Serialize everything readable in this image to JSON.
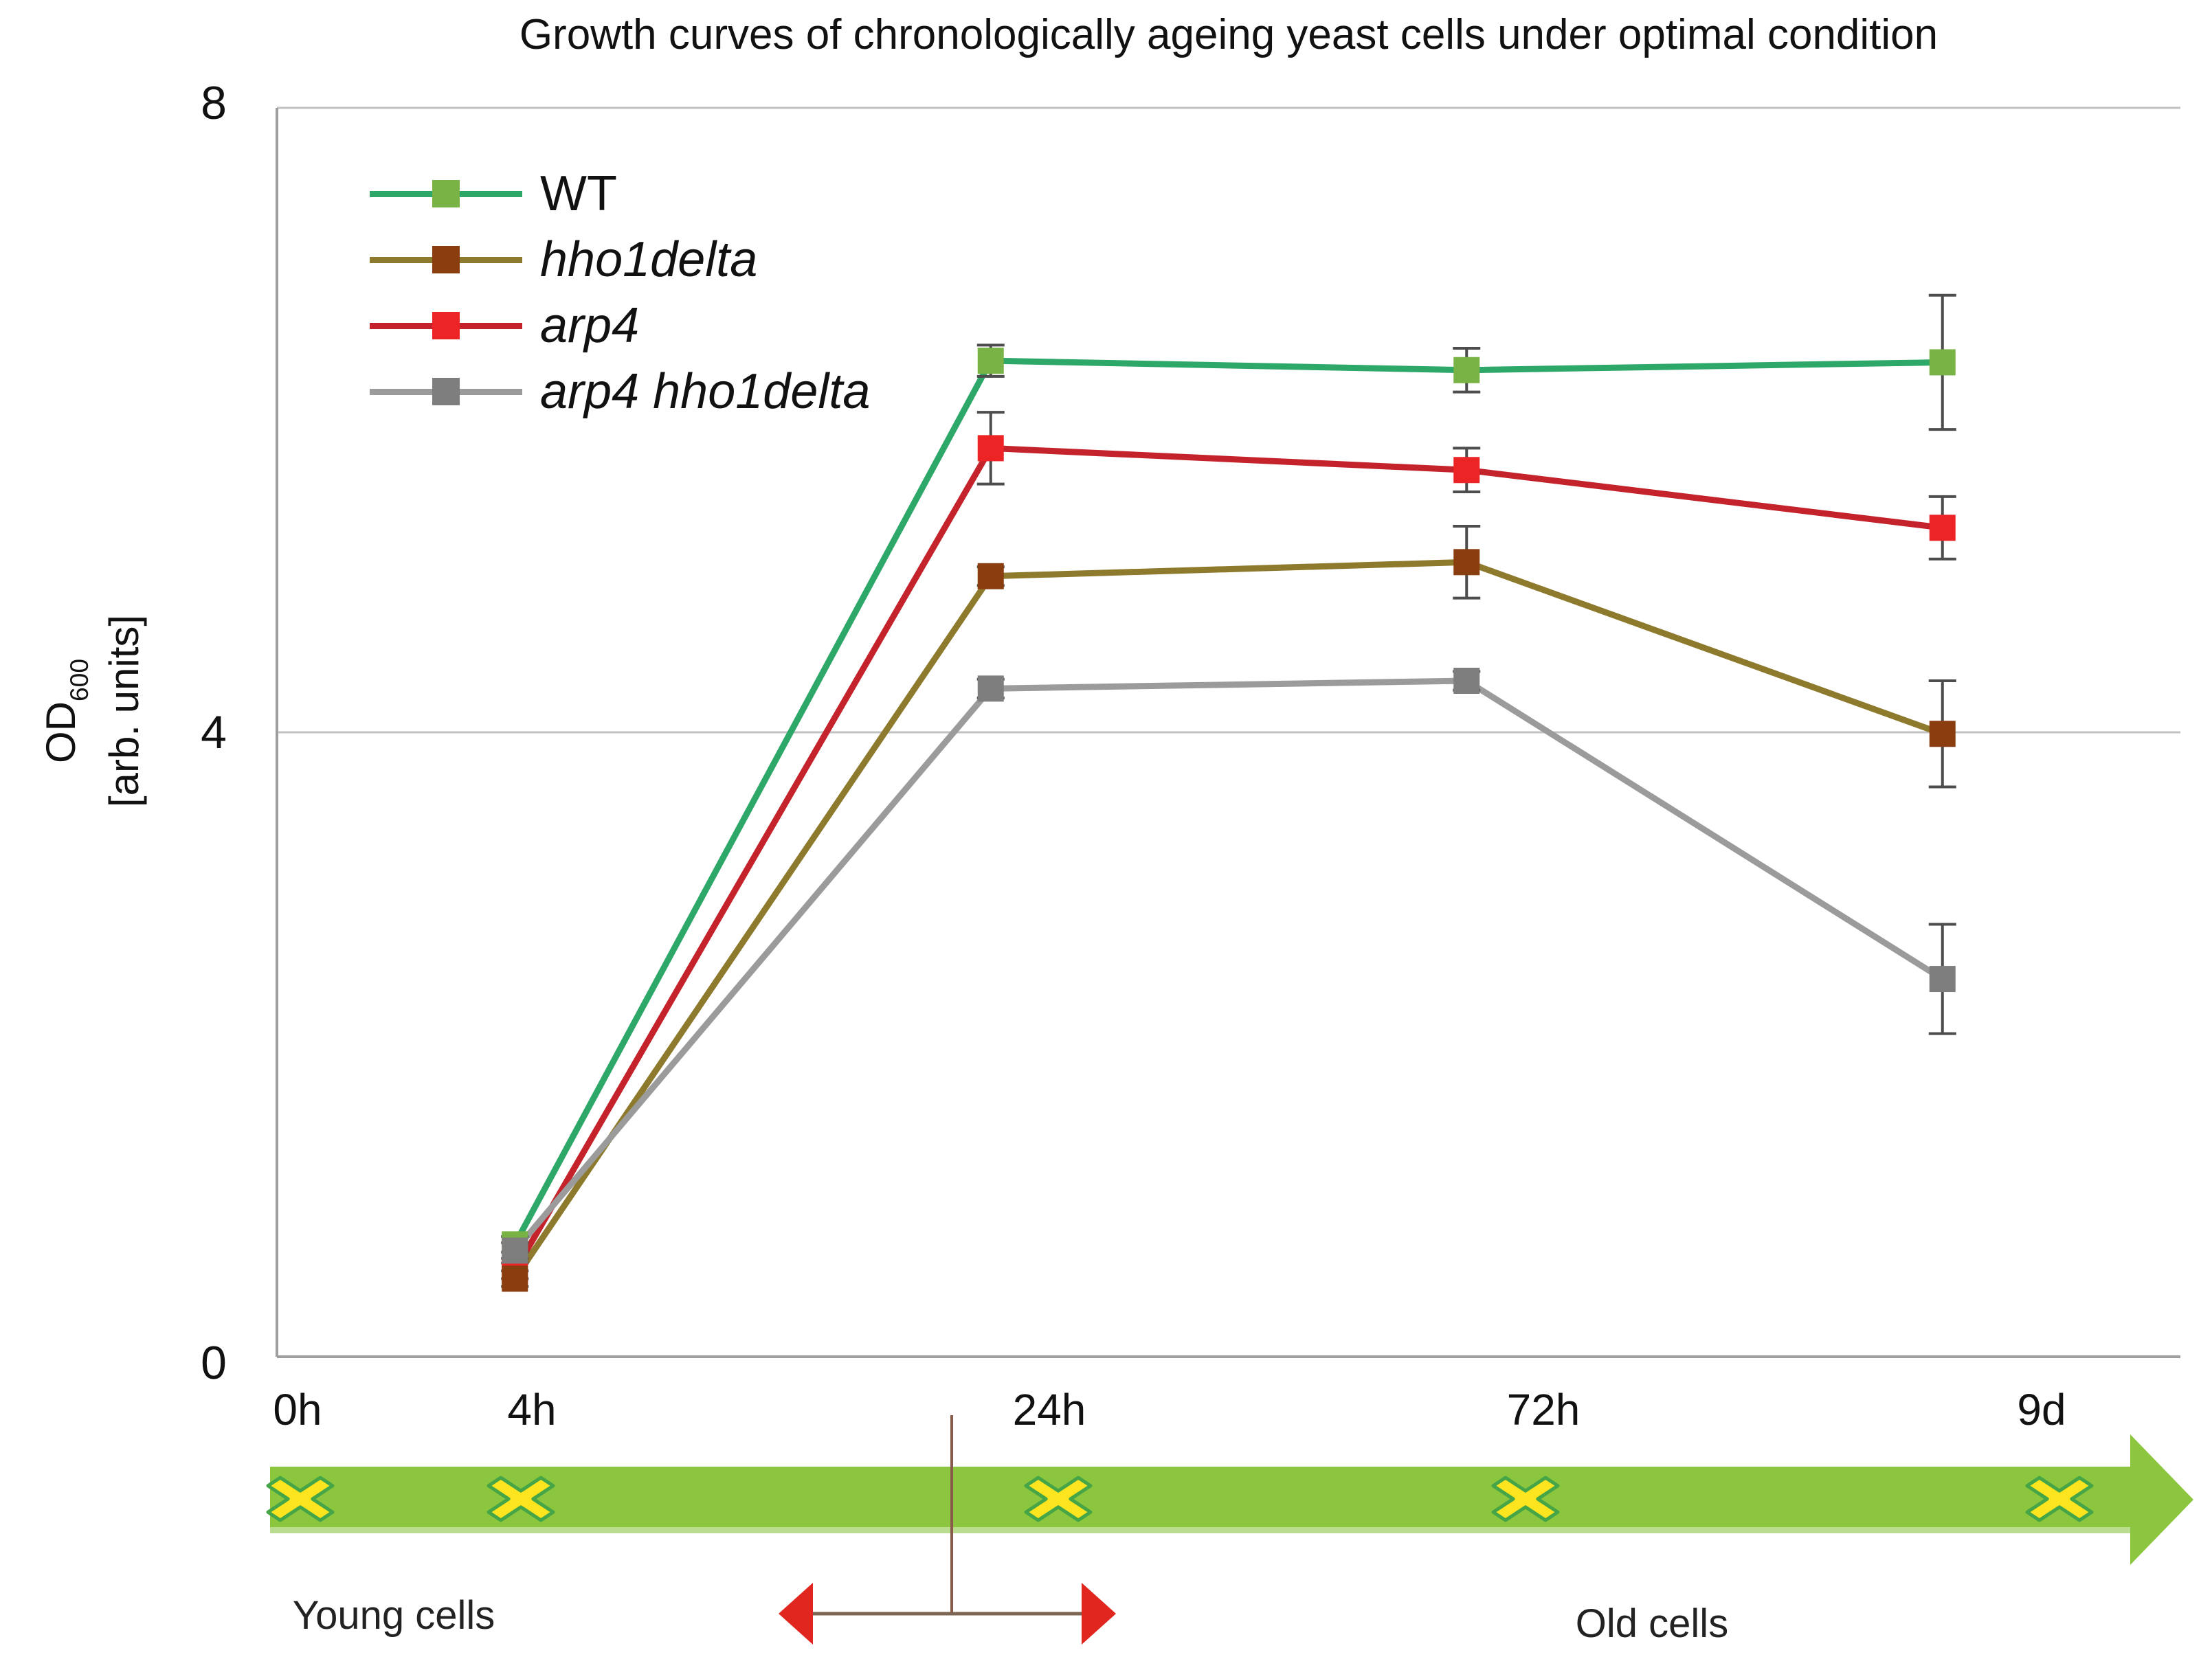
{
  "title": "Growth curves of chronologically ageing yeast cells under optimal condition",
  "y_axis": {
    "title_main": "OD",
    "title_sub": "600",
    "title_unit": "[arb. units]",
    "tick_labels": [
      "8",
      "4",
      "0"
    ],
    "tick_values": [
      8,
      4,
      0
    ]
  },
  "legend": {
    "items": [
      {
        "label": "WT",
        "italic": false
      },
      {
        "label": "hho1delta",
        "italic": true
      },
      {
        "label": "arp4",
        "italic": true
      },
      {
        "label": "arp4 hho1delta",
        "italic": true
      }
    ]
  },
  "chart_data": {
    "type": "line",
    "title": "Growth curves of chronologically ageing yeast cells under optimal condition",
    "categories": [
      "4h",
      "24h",
      "72h",
      "9d"
    ],
    "series": [
      {
        "name": "WT",
        "values": [
          0.72,
          6.38,
          6.32,
          6.37
        ],
        "errors": [
          0.05,
          0.1,
          0.14,
          0.43
        ],
        "line_color": "#2EA868",
        "marker_color": "#79B346"
      },
      {
        "name": "hho1delta",
        "values": [
          0.5,
          5.0,
          5.09,
          3.99
        ],
        "errors": [
          0.05,
          0.06,
          0.23,
          0.34
        ],
        "line_color": "#8E7A2D",
        "marker_color": "#8A3E0F"
      },
      {
        "name": "arp4",
        "values": [
          0.55,
          5.82,
          5.68,
          5.31
        ],
        "errors": [
          0.05,
          0.23,
          0.14,
          0.2
        ],
        "line_color": "#C5232B",
        "marker_color": "#EC2426"
      },
      {
        "name": "arp4 hho1delta",
        "values": [
          0.68,
          4.28,
          4.33,
          2.42
        ],
        "errors": [
          0.05,
          0.06,
          0.06,
          0.35
        ],
        "line_color": "#9B9B9B",
        "marker_color": "#7E7E7E"
      }
    ],
    "xlabel": "",
    "ylabel": "OD600 [arb. units]",
    "ylim": [
      0,
      8
    ],
    "yticks": [
      0,
      4,
      8
    ],
    "gridlines": [
      4,
      8
    ],
    "legend_position": "top-left",
    "error_bar_color": "#4D4D4D",
    "grid_color": "#C2C2C2",
    "axis_color": "#9E9E9E"
  },
  "timeline": {
    "labels": [
      "0h",
      "4h",
      "24h",
      "72h",
      "9d"
    ],
    "young_label": "Young cells",
    "old_label": "Old cells",
    "bar_color": "#8CC63F",
    "bar_highlight": "#B9DC8F",
    "x_mark_fill": "#FCE51E",
    "x_mark_stroke": "#46A546",
    "red_arrow_head_color": "#E0261F",
    "red_arrow_shaft_color": "#7C6553",
    "red_marker_line_color": "#8A5A4A"
  }
}
